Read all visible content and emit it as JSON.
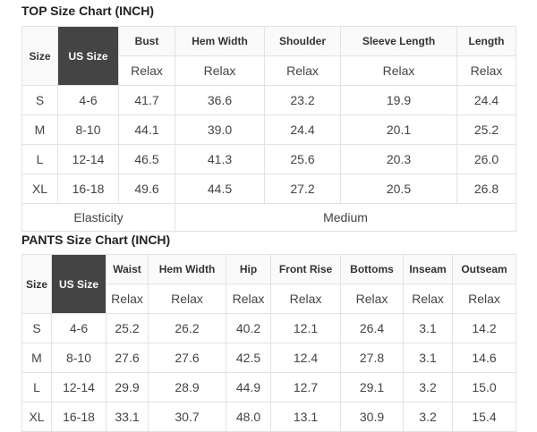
{
  "top": {
    "title": "TOP Size Chart (INCH)",
    "headers": [
      "Size",
      "US Size",
      "Bust",
      "Hem Width",
      "Shoulder",
      "Sleeve Length",
      "Length"
    ],
    "sub": "Relax",
    "rows": [
      [
        "S",
        "4-6",
        "41.7",
        "36.6",
        "23.2",
        "19.9",
        "24.4"
      ],
      [
        "M",
        "8-10",
        "44.1",
        "39.0",
        "24.4",
        "20.1",
        "25.2"
      ],
      [
        "L",
        "12-14",
        "46.5",
        "41.3",
        "25.6",
        "20.3",
        "26.0"
      ],
      [
        "XL",
        "16-18",
        "49.6",
        "44.5",
        "27.2",
        "20.5",
        "26.8"
      ]
    ],
    "elasticity_label": "Elasticity",
    "elasticity_value": "Medium"
  },
  "pants": {
    "title": "PANTS Size Chart (INCH)",
    "headers": [
      "Size",
      "US Size",
      "Waist",
      "Hem Width",
      "Hip",
      "Front Rise",
      "Bottoms",
      "Inseam",
      "Outseam"
    ],
    "sub": "Relax",
    "rows": [
      [
        "S",
        "4-6",
        "25.2",
        "26.2",
        "40.2",
        "12.1",
        "26.4",
        "3.1",
        "14.2"
      ],
      [
        "M",
        "8-10",
        "27.6",
        "27.6",
        "42.5",
        "12.4",
        "27.8",
        "3.1",
        "14.6"
      ],
      [
        "L",
        "12-14",
        "29.9",
        "28.9",
        "44.9",
        "12.7",
        "29.1",
        "3.2",
        "15.0"
      ],
      [
        "XL",
        "16-18",
        "33.1",
        "30.7",
        "48.0",
        "13.1",
        "30.9",
        "3.2",
        "15.4"
      ]
    ]
  }
}
